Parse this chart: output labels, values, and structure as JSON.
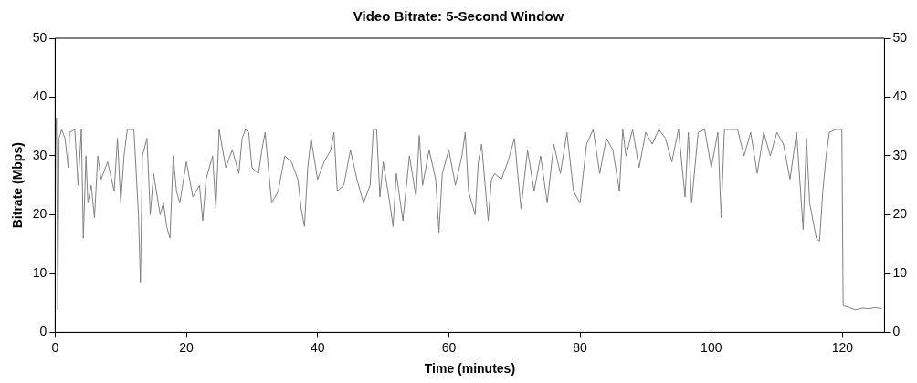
{
  "chart_data": {
    "type": "line",
    "title": "Video Bitrate: 5-Second Window",
    "xlabel": "Time (minutes)",
    "ylabel": "Bitrate (Mbps)",
    "grid": false,
    "legend": false,
    "marker": "none",
    "line_style": "solid",
    "xlim": [
      0,
      126.4
    ],
    "xticks": [
      0,
      20,
      40,
      60,
      80,
      100,
      120
    ],
    "ylim": [
      0,
      50
    ],
    "yticks": [
      0,
      10,
      20,
      30,
      40,
      50
    ],
    "y2lim": [
      0,
      50
    ],
    "y2ticks": [
      0,
      10,
      20,
      30,
      40,
      50
    ],
    "series": [
      {
        "color": "#808080",
        "x": [
          0,
          0.2,
          0.4,
          0.6,
          1,
          1.5,
          2,
          2.2,
          3,
          3.5,
          4,
          4.3,
          4.7,
          5,
          5.5,
          6,
          6.5,
          7,
          8,
          9,
          9.5,
          10,
          10.5,
          11,
          12,
          12.7,
          13,
          13.3,
          14,
          14.5,
          15,
          16,
          16.5,
          17,
          17.5,
          18,
          18.5,
          19,
          20,
          21,
          22,
          22.5,
          23,
          24,
          24.5,
          25,
          26,
          27,
          28,
          28.5,
          29,
          29.5,
          30,
          31,
          31.5,
          32,
          33,
          34,
          35,
          36,
          37,
          37.5,
          38,
          38.5,
          39,
          40,
          41,
          42,
          42.5,
          43,
          44,
          45,
          46,
          47,
          48,
          48.5,
          49,
          49.5,
          50,
          51,
          51.5,
          52,
          53,
          54,
          55,
          55.5,
          56,
          57,
          58,
          58.5,
          59,
          60,
          61,
          62,
          62.5,
          63,
          64,
          64.5,
          65,
          66,
          66.5,
          67,
          68,
          69,
          70,
          71,
          72,
          73,
          74,
          75,
          76,
          77,
          78,
          79,
          80,
          81,
          82,
          83,
          84,
          85,
          86,
          86.5,
          87,
          88,
          89,
          90,
          91,
          92,
          93,
          94,
          95,
          96,
          96.5,
          97,
          98,
          99,
          100,
          101,
          101.5,
          102,
          104,
          105,
          106,
          107,
          108,
          109,
          110,
          111,
          112,
          113,
          114,
          114.5,
          115,
          116,
          116.5,
          117,
          117.5,
          118,
          119,
          119.9,
          120.1,
          121,
          122,
          123,
          124,
          125,
          126
        ],
        "values": [
          30,
          36.5,
          3.8,
          33,
          34.5,
          33,
          28,
          34,
          34.5,
          25,
          34.5,
          16,
          30,
          22,
          25,
          19.5,
          30,
          26,
          29,
          24,
          33,
          22,
          30,
          34.5,
          34.5,
          20,
          8.5,
          30,
          33,
          20,
          27,
          20,
          22,
          18,
          16,
          30,
          24,
          22,
          29,
          23,
          25,
          19,
          26,
          30,
          21,
          34.5,
          28,
          31,
          27,
          33,
          34.5,
          34,
          28,
          27,
          31,
          34,
          22,
          24,
          30,
          29,
          26,
          21,
          18,
          28,
          33,
          26,
          29,
          31,
          34,
          24,
          25,
          31,
          26,
          22,
          25,
          34.5,
          34.5,
          23,
          29,
          22,
          18,
          27,
          19,
          30,
          23,
          33.5,
          25,
          31,
          26,
          17,
          27,
          31,
          25,
          30,
          34,
          24,
          20,
          29,
          32,
          19,
          26,
          27,
          26,
          29,
          33,
          21,
          31,
          24,
          30,
          22,
          32,
          27,
          34,
          24,
          22,
          32,
          34.5,
          27,
          33,
          31,
          24,
          34.5,
          30,
          34.5,
          28,
          34,
          32,
          34.5,
          33,
          29,
          34.5,
          23,
          34,
          22,
          34,
          34.5,
          28,
          34,
          19.5,
          34.5,
          34.5,
          30,
          34,
          27,
          34,
          30,
          34,
          32,
          26,
          34,
          17.5,
          33,
          22,
          16,
          15.5,
          24,
          30,
          34,
          34.5,
          34.5,
          4.5,
          4.2,
          3.8,
          4.1,
          4,
          4.2,
          4
        ]
      }
    ]
  }
}
